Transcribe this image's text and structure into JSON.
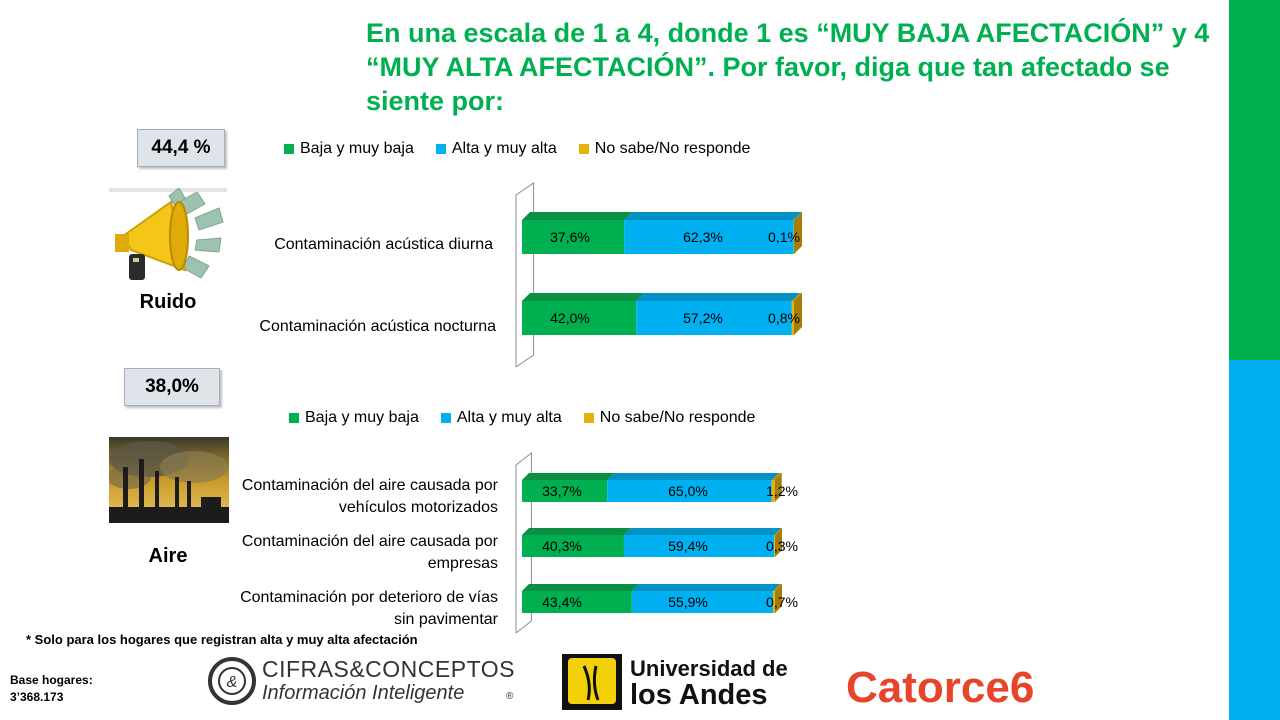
{
  "title": "En una escala de 1 a 4, donde 1 es “MUY BAJA AFECTACIÓN” y 4 “MUY ALTA AFECTACIÓN”. Por favor, diga que tan afectado se siente por:",
  "colors": {
    "green": "#00b050",
    "blue": "#00b0f0",
    "gold": "#e6b30c",
    "sidebar_green": "#00b050",
    "sidebar_blue": "#00b0f0"
  },
  "legend": [
    "Baja y muy baja",
    "Alta y muy alta",
    "No sabe/No responde"
  ],
  "sections": [
    {
      "label": "Ruido",
      "badge": "44,4 %",
      "icon": "megaphone-icon"
    },
    {
      "label": "Aire",
      "badge": "38,0%",
      "icon": "factory-smoke-image"
    }
  ],
  "chart_data": [
    {
      "type": "bar",
      "orientation": "horizontal",
      "stacked": "100%",
      "categories": [
        "Contaminación acústica diurna",
        "Contaminación acústica nocturna"
      ],
      "series": [
        {
          "name": "Baja y muy baja",
          "values": [
            37.6,
            42.0
          ],
          "labels": [
            "37,6%",
            "42,0%"
          ]
        },
        {
          "name": "Alta y muy alta",
          "values": [
            62.3,
            57.2
          ],
          "labels": [
            "62,3%",
            "57,2%"
          ]
        },
        {
          "name": "No sabe/No responde",
          "values": [
            0.1,
            0.8
          ],
          "labels": [
            "0,1%",
            "0,8%"
          ]
        }
      ],
      "legend_position": "top"
    },
    {
      "type": "bar",
      "orientation": "horizontal",
      "stacked": "100%",
      "categories": [
        "Contaminación del aire causada por vehículos motorizados",
        "Contaminación del aire  causada por empresas",
        "Contaminación por deterioro de vías sin pavimentar"
      ],
      "series": [
        {
          "name": "Baja y muy baja",
          "values": [
            33.7,
            40.3,
            43.4
          ],
          "labels": [
            "33,7%",
            "40,3%",
            "43,4%"
          ]
        },
        {
          "name": "Alta y muy alta",
          "values": [
            65.0,
            59.4,
            55.9
          ],
          "labels": [
            "65,0%",
            "59,4%",
            "55,9%"
          ]
        },
        {
          "name": "No sabe/No responde",
          "values": [
            1.2,
            0.3,
            0.7
          ],
          "labels": [
            "1,2%",
            "0,3%",
            "0,7%"
          ]
        }
      ],
      "legend_position": "top"
    }
  ],
  "footnote": "* Solo para los hogares que registran alta y muy alta afectación",
  "base": {
    "line1": "Base hogares:",
    "line2": "3’368.173"
  },
  "logos": {
    "cifras_line1": "CIFRAS&CONCEPTOS",
    "cifras_line2": "Información Inteligente",
    "cifras_reg": "®",
    "cifras_mark": "&",
    "andes_line1": "Universidad de",
    "andes_line2": "los Andes",
    "catorce": "Catorce6"
  }
}
